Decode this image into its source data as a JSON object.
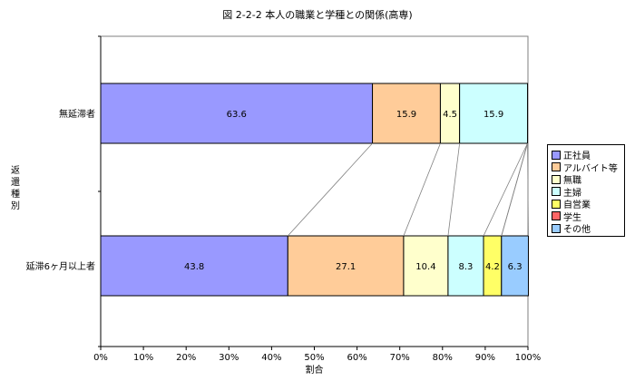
{
  "chart_data": {
    "type": "bar",
    "stacked": true,
    "orientation": "horizontal",
    "title": "図 2-2-2  本人の職業と学種との関係(高専)",
    "xlabel": "割合",
    "ylabel": "返還種別",
    "xlim": [
      0,
      100
    ],
    "x_ticks": [
      "0%",
      "10%",
      "20%",
      "30%",
      "40%",
      "50%",
      "60%",
      "70%",
      "80%",
      "90%",
      "100%"
    ],
    "categories": [
      "無延滞者",
      "延滞6ヶ月以上者"
    ],
    "series": [
      {
        "name": "正社員",
        "color": "#9999ff",
        "values": [
          63.6,
          43.8
        ]
      },
      {
        "name": "アルバイト等",
        "color": "#ffcc99",
        "values": [
          15.9,
          27.1
        ]
      },
      {
        "name": "無職",
        "color": "#ffffcc",
        "values": [
          4.5,
          10.4
        ]
      },
      {
        "name": "主婦",
        "color": "#ccffff",
        "values": [
          15.9,
          8.3
        ]
      },
      {
        "name": "自営業",
        "color": "#ffff66",
        "values": [
          0,
          4.2
        ]
      },
      {
        "name": "学生",
        "color": "#ff6666",
        "values": [
          0,
          0
        ]
      },
      {
        "name": "その他",
        "color": "#99ccff",
        "values": [
          0,
          6.3
        ]
      }
    ],
    "data_labels": [
      [
        "63.6",
        "15.9",
        "4.5",
        "15.9",
        "",
        "",
        ""
      ],
      [
        "43.8",
        "27.1",
        "10.4",
        "8.3",
        "4.2",
        "",
        "6.3"
      ]
    ],
    "legend_position": "right",
    "series_lines": true,
    "grid": false
  }
}
